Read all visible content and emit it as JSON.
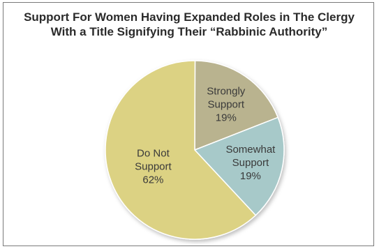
{
  "chart_data": {
    "type": "pie",
    "title_lines": [
      "Support For Women Having Expanded Roles in The Clergy",
      "With a Title Signifying Their “Rabbinic Authority”"
    ],
    "slices": [
      {
        "label_lines": [
          "Strongly",
          "Support"
        ],
        "value": 19,
        "value_label": "19%",
        "color": "#b9b38f"
      },
      {
        "label_lines": [
          "Somewhat",
          "Support"
        ],
        "value": 19,
        "value_label": "19%",
        "color": "#a7c9c9"
      },
      {
        "label_lines": [
          "Do Not",
          "Support"
        ],
        "value": 62,
        "value_label": "62%",
        "color": "#dcd283"
      }
    ]
  }
}
